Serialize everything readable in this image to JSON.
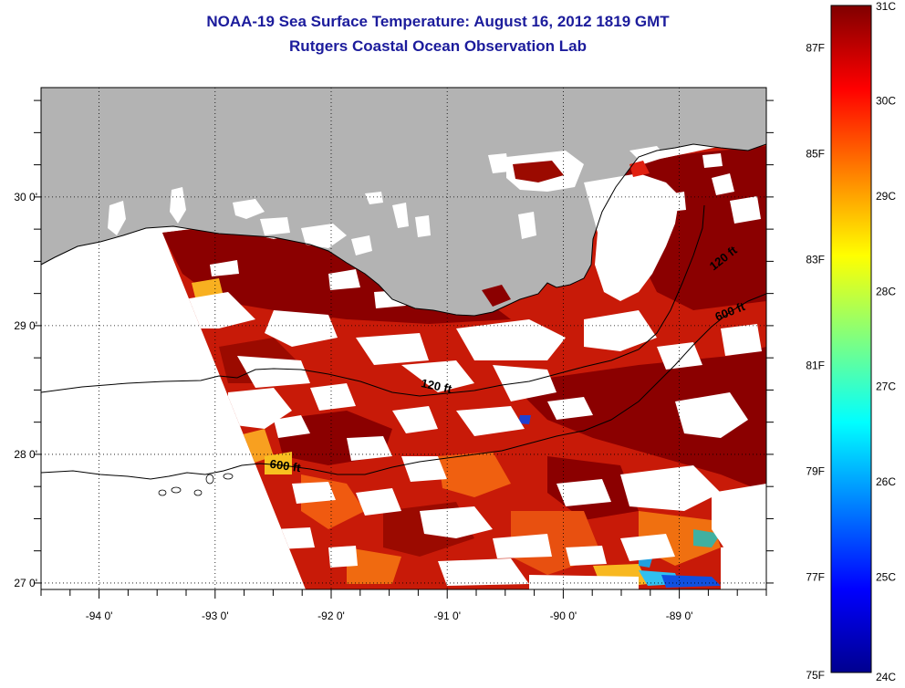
{
  "title": "NOAA-19 Sea Surface Temperature:  August 16, 2012 1819 GMT",
  "subtitle": "Rutgers Coastal Ocean Observation Lab",
  "map": {
    "lon_range": [
      -94.5,
      -88.25
    ],
    "lat_range": [
      26.95,
      30.85
    ],
    "lon_ticks": [
      {
        "value": -94,
        "label": "-94 0'"
      },
      {
        "value": -93,
        "label": "-93 0'"
      },
      {
        "value": -92,
        "label": "-92 0'"
      },
      {
        "value": -91,
        "label": "-91 0'"
      },
      {
        "value": -90,
        "label": "-90 0'"
      },
      {
        "value": -89,
        "label": "-89 0'"
      }
    ],
    "lat_ticks": [
      {
        "value": 30,
        "label": "30 0'"
      },
      {
        "value": 29,
        "label": "29 0'"
      },
      {
        "value": 28,
        "label": "28 0'"
      },
      {
        "value": 27,
        "label": "27 0'"
      }
    ],
    "contour_labels": [
      {
        "text": "120 ft",
        "lon": -91.1,
        "lat": 28.5,
        "angle": 12
      },
      {
        "text": "600 ft",
        "lon": -92.4,
        "lat": 27.88,
        "angle": 8
      },
      {
        "text": "120 ft",
        "lon": -88.6,
        "lat": 29.5,
        "angle": -38
      },
      {
        "text": "600 ft",
        "lon": -88.55,
        "lat": 29.08,
        "angle": -22
      }
    ],
    "colors": {
      "land": "#b3b3b3",
      "cloud": "#ffffff",
      "frame": "#000000"
    }
  },
  "colorbar": {
    "min_c": 24,
    "max_c": 31,
    "celsius_labels": [
      "31C",
      "30C",
      "29C",
      "28C",
      "27C",
      "26C",
      "25C",
      "24C"
    ],
    "fahrenheit_labels": [
      {
        "value": 87,
        "label": "87F"
      },
      {
        "value": 85,
        "label": "85F"
      },
      {
        "value": 83,
        "label": "83F"
      },
      {
        "value": 81,
        "label": "81F"
      },
      {
        "value": 79,
        "label": "79F"
      },
      {
        "value": 77,
        "label": "77F"
      },
      {
        "value": 75,
        "label": "75F"
      }
    ],
    "colormap": "jet"
  }
}
